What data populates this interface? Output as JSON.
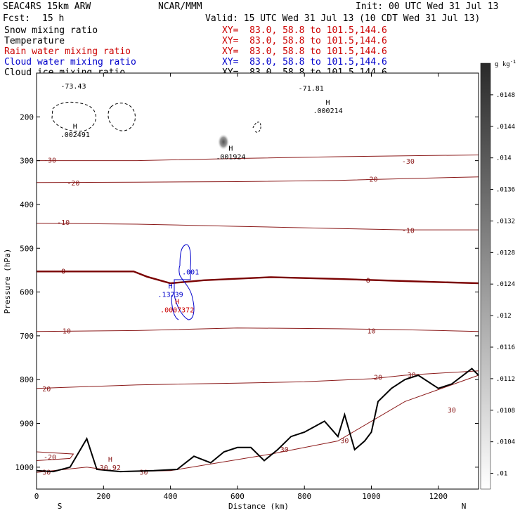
{
  "header": {
    "model": "SEAC4RS 15km ARW",
    "org": "NCAR/MMM",
    "init": "Init: 00 UTC Wed 31 Jul 13",
    "fcst_label": "Fcst:",
    "fcst_value": "15 h",
    "valid": "Valid: 15 UTC Wed 31 Jul 13 (10 CDT Wed 31 Jul 13)"
  },
  "fields": [
    {
      "name": "Snow mixing ratio",
      "color": "#000000",
      "xy": "XY=  83.0, 58.8 to 101.5,144.6"
    },
    {
      "name": "Temperature",
      "color": "#000000",
      "xy": "XY=  83.0, 58.8 to 101.5,144.6"
    },
    {
      "name": "Rain water mixing ratio",
      "color": "#cc0000",
      "xy": "XY=  83.0, 58.8 to 101.5,144.6"
    },
    {
      "name": "Cloud water mixing ratio",
      "color": "#0000cc",
      "xy": "XY=  83.0, 58.8 to 101.5,144.6"
    },
    {
      "name": "Cloud ice mixing ratio",
      "color": "#000000",
      "xy": "XY=  83.0, 58.8 to 101.5,144.6"
    }
  ],
  "chart_data": {
    "type": "contour",
    "xlabel": "Distance (km)",
    "ylabel": "Pressure (hPa)",
    "xlim": [
      0,
      1320
    ],
    "ylim": [
      1050,
      100
    ],
    "x_ticks": [
      0,
      200,
      400,
      600,
      800,
      1000,
      1200
    ],
    "y_ticks": [
      200,
      300,
      400,
      500,
      600,
      700,
      800,
      900,
      1000
    ],
    "x_end_labels": [
      "S",
      "N"
    ],
    "colorbar": {
      "unit": "g kg",
      "unit_exp": "-1",
      "ticks": [
        ".01",
        ".0104",
        ".0108",
        ".0112",
        ".0116",
        ".012",
        ".0124",
        ".0128",
        ".0132",
        ".0136",
        ".014",
        ".0144",
        ".0148"
      ],
      "min": 0.0098,
      "max": 0.0152
    },
    "temperature_contours": [
      {
        "label": "-30",
        "line_color": "#8b1a1a",
        "points": [
          [
            0,
            300
          ],
          [
            300,
            300
          ],
          [
            600,
            295
          ],
          [
            900,
            291
          ],
          [
            1100,
            289
          ],
          [
            1320,
            287
          ]
        ],
        "label_positions": [
          [
            40,
            300
          ],
          [
            1110,
            302
          ]
        ]
      },
      {
        "label": "-20",
        "line_color": "#8b1a1a",
        "points": [
          [
            0,
            350
          ],
          [
            300,
            349
          ],
          [
            600,
            348
          ],
          [
            900,
            345
          ],
          [
            1100,
            341
          ],
          [
            1320,
            337
          ]
        ],
        "label_positions": [
          [
            110,
            352
          ],
          [
            1000,
            343
          ]
        ]
      },
      {
        "label": "-10",
        "line_color": "#8b1a1a",
        "points": [
          [
            0,
            443
          ],
          [
            300,
            445
          ],
          [
            600,
            450
          ],
          [
            900,
            455
          ],
          [
            1100,
            458
          ],
          [
            1320,
            458
          ]
        ],
        "label_positions": [
          [
            80,
            442
          ],
          [
            1110,
            460
          ]
        ]
      },
      {
        "label": "0",
        "line_color": "#7a0000",
        "thick": true,
        "points": [
          [
            0,
            553
          ],
          [
            290,
            553
          ],
          [
            330,
            565
          ],
          [
            400,
            580
          ],
          [
            500,
            573
          ],
          [
            700,
            566
          ],
          [
            900,
            570
          ],
          [
            1100,
            575
          ],
          [
            1320,
            580
          ]
        ],
        "label_positions": [
          [
            80,
            553
          ],
          [
            990,
            574
          ]
        ]
      },
      {
        "label": "10",
        "line_color": "#8b1a1a",
        "points": [
          [
            0,
            690
          ],
          [
            300,
            688
          ],
          [
            600,
            682
          ],
          [
            900,
            684
          ],
          [
            1100,
            686
          ],
          [
            1320,
            690
          ]
        ],
        "label_positions": [
          [
            90,
            690
          ],
          [
            1000,
            690
          ]
        ]
      },
      {
        "label": "20",
        "line_color": "#8b1a1a",
        "points": [
          [
            0,
            820
          ],
          [
            300,
            812
          ],
          [
            600,
            808
          ],
          [
            800,
            805
          ],
          [
            1000,
            798
          ],
          [
            1100,
            790
          ],
          [
            1320,
            780
          ]
        ],
        "label_positions": [
          [
            30,
            822
          ],
          [
            1020,
            796
          ]
        ]
      },
      {
        "label": "30",
        "line_color": "#8b1a1a",
        "points": [
          [
            0,
            1012
          ],
          [
            150,
            1000
          ],
          [
            250,
            1010
          ],
          [
            400,
            1008
          ],
          [
            700,
            970
          ],
          [
            900,
            940
          ],
          [
            1100,
            850
          ],
          [
            1320,
            790
          ]
        ],
        "label_positions": [
          [
            30,
            1012
          ],
          [
            320,
            1012
          ],
          [
            740,
            960
          ],
          [
            920,
            940
          ],
          [
            1240,
            870
          ],
          [
            1120,
            790
          ]
        ]
      },
      {
        "label": "-20",
        "line_color": "#8b1a1a",
        "points": [
          [
            0,
            985
          ],
          [
            100,
            980
          ],
          [
            110,
            970
          ],
          [
            0,
            965
          ]
        ],
        "label_positions": [
          [
            40,
            978
          ]
        ]
      }
    ],
    "annotations": [
      {
        "text": "H",
        "value": ".000214",
        "color": "#000000",
        "x": 870,
        "p": 185
      },
      {
        "text": "H",
        "value": ".002491",
        "color": "#000000",
        "x": 115,
        "p": 240
      },
      {
        "text": "H",
        "value": ".001924",
        "color": "#000000",
        "x": 580,
        "p": 290
      },
      {
        "text": "H",
        "value": ".13739",
        "color": "#0000cc",
        "x": 400,
        "p": 605
      },
      {
        "text": "H",
        "value": ".0007372",
        "color": "#cc0000",
        "x": 420,
        "p": 640
      },
      {
        "text": "H",
        "value": "30.92",
        "color": "#8b1a1a",
        "x": 220,
        "p": 1000
      }
    ],
    "extra_labels": [
      {
        "text": ".001",
        "color": "#0000cc",
        "x": 460,
        "p": 560
      },
      {
        "text": "-73.43",
        "color": "#000000",
        "x": 110,
        "p": 135
      },
      {
        "text": "-71.81",
        "color": "#000000",
        "x": 820,
        "p": 140
      }
    ],
    "terrain": [
      [
        0,
        1008
      ],
      [
        50,
        1010
      ],
      [
        100,
        1000
      ],
      [
        150,
        935
      ],
      [
        180,
        1005
      ],
      [
        250,
        1010
      ],
      [
        350,
        1008
      ],
      [
        420,
        1005
      ],
      [
        470,
        975
      ],
      [
        520,
        990
      ],
      [
        560,
        965
      ],
      [
        600,
        955
      ],
      [
        640,
        955
      ],
      [
        680,
        985
      ],
      [
        720,
        960
      ],
      [
        760,
        930
      ],
      [
        800,
        920
      ],
      [
        860,
        895
      ],
      [
        900,
        930
      ],
      [
        920,
        880
      ],
      [
        950,
        960
      ],
      [
        980,
        940
      ],
      [
        1000,
        920
      ],
      [
        1020,
        850
      ],
      [
        1060,
        820
      ],
      [
        1100,
        800
      ],
      [
        1140,
        790
      ],
      [
        1200,
        820
      ],
      [
        1240,
        810
      ],
      [
        1300,
        775
      ],
      [
        1320,
        790
      ]
    ]
  }
}
